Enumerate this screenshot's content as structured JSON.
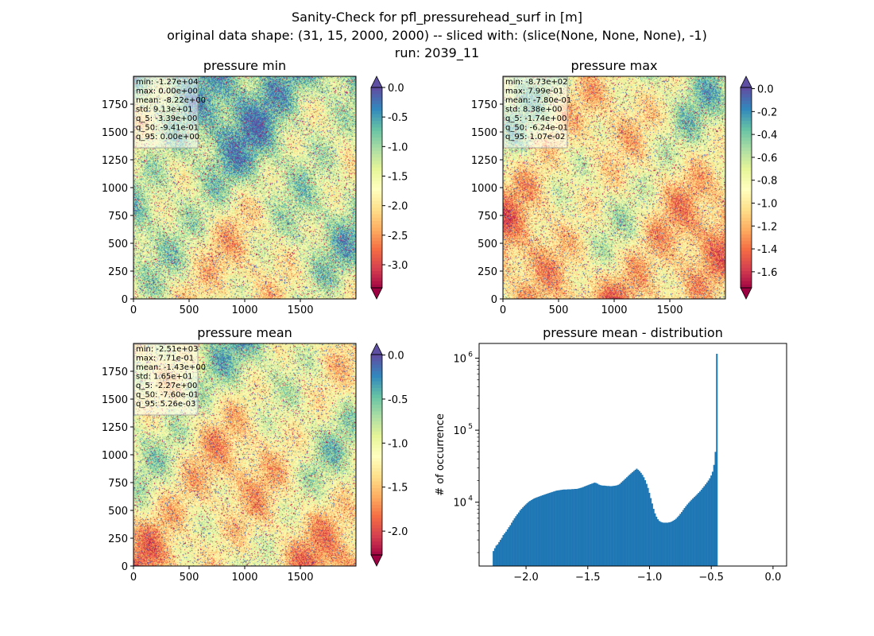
{
  "figure": {
    "suptitle_lines": [
      "Sanity-Check for pfl_pressurehead_surf in [m]",
      "original data shape: (31, 15, 2000, 2000) -- sliced with: (slice(None, None, None), -1)",
      "run: 2039_11"
    ]
  },
  "colors": {
    "histogram_bar": "#1f77b4",
    "stats_box_bg": "#ffffff",
    "spectral_scale": [
      "#9e0142",
      "#d53e4f",
      "#f46d43",
      "#fdae61",
      "#fee08b",
      "#ffffbf",
      "#e6f598",
      "#abdda4",
      "#66c2a5",
      "#3288bd",
      "#5e4fa2"
    ]
  },
  "chart_data": [
    {
      "type": "heatmap",
      "title": "pressure min",
      "cmap": "Spectral",
      "xlim": [
        0,
        2000
      ],
      "ylim": [
        0,
        2000
      ],
      "xticks": [
        0,
        500,
        1000,
        1500
      ],
      "yticks": [
        0,
        250,
        500,
        750,
        1000,
        1250,
        1500,
        1750
      ],
      "colorbar": {
        "vmin": -3.39,
        "vmax": 0.0,
        "ticks": [
          "0.0",
          "-0.5",
          "-1.0",
          "-1.5",
          "-2.0",
          "-2.5",
          "-3.0"
        ],
        "extend": "both"
      },
      "stats": [
        "min: -1.27e+04",
        "max: 0.00e+00",
        "mean: -8.22e+00",
        "std: 9.13e+01",
        "q_5: -3.39e+00",
        "q_50: -9.41e-01",
        "q_95: 0.00e+00"
      ]
    },
    {
      "type": "heatmap",
      "title": "pressure max",
      "cmap": "Spectral",
      "xlim": [
        0,
        2000
      ],
      "ylim": [
        0,
        2000
      ],
      "xticks": [
        0,
        500,
        1000,
        1500
      ],
      "yticks": [
        0,
        250,
        500,
        750,
        1000,
        1250,
        1500,
        1750
      ],
      "colorbar": {
        "vmin": -1.74,
        "vmax": 0.0107,
        "ticks": [
          "0.0",
          "-0.2",
          "-0.4",
          "-0.6",
          "-0.8",
          "-1.0",
          "-1.2",
          "-1.4",
          "-1.6"
        ],
        "extend": "both"
      },
      "stats": [
        "min: -8.73e+02",
        "max: 7.99e-01",
        "mean: -7.80e-01",
        "std: 8.38e+00",
        "q_5: -1.74e+00",
        "q_50: -6.24e-01",
        "q_95: 1.07e-02"
      ]
    },
    {
      "type": "heatmap",
      "title": "pressure mean",
      "cmap": "Spectral",
      "xlim": [
        0,
        2000
      ],
      "ylim": [
        0,
        2000
      ],
      "xticks": [
        0,
        500,
        1000,
        1500
      ],
      "yticks": [
        0,
        250,
        500,
        750,
        1000,
        1250,
        1500,
        1750
      ],
      "colorbar": {
        "vmin": -2.27,
        "vmax": 0.00526,
        "ticks": [
          "0.0",
          "-0.5",
          "-1.0",
          "-1.5",
          "-2.0"
        ],
        "extend": "both"
      },
      "stats": [
        "min: -2.51e+03",
        "max: 7.71e-01",
        "mean: -1.43e+00",
        "std: 1.65e+01",
        "q_5: -2.27e+00",
        "q_50: -7.60e-01",
        "q_95: 5.26e-03"
      ]
    },
    {
      "type": "bar",
      "title": "pressure mean - distribution",
      "xlabel": "",
      "ylabel": "# of occurrence",
      "xlim": [
        -2.38,
        0.11
      ],
      "ylim": [
        1300,
        1600000
      ],
      "log_y": true,
      "xticks": [
        "−2.0",
        "−1.5",
        "−1.0",
        "−0.5",
        "0.0"
      ],
      "yticks": [
        {
          "base": "10",
          "exp": "4"
        },
        {
          "base": "10",
          "exp": "5"
        },
        {
          "base": "10",
          "exp": "6"
        }
      ],
      "bins": {
        "start": -2.27,
        "end": 0.00526,
        "width": 0.0113761
      },
      "values": [
        2100,
        2300,
        2500,
        2600,
        2800,
        3000,
        3200,
        3500,
        3700,
        3900,
        4200,
        4500,
        4800,
        5200,
        5600,
        6000,
        6400,
        6800,
        7200,
        7700,
        8100,
        8500,
        8900,
        9300,
        9700,
        10100,
        10400,
        10700,
        11000,
        11300,
        11500,
        11700,
        11900,
        12100,
        12300,
        12500,
        12700,
        12900,
        13100,
        13300,
        13500,
        13700,
        13900,
        14100,
        14300,
        14500,
        14600,
        14700,
        14800,
        14900,
        15000,
        15000,
        15000,
        15100,
        15100,
        15100,
        15200,
        15200,
        15300,
        15300,
        15400,
        15600,
        15800,
        16000,
        16300,
        16600,
        16900,
        17200,
        17500,
        17800,
        18100,
        18400,
        18700,
        18500,
        18100,
        17600,
        17300,
        17100,
        17000,
        17000,
        16900,
        16800,
        16800,
        16700,
        16700,
        16800,
        16900,
        17000,
        17200,
        17500,
        18000,
        18800,
        19600,
        20400,
        21300,
        22200,
        23200,
        24200,
        25200,
        26200,
        27200,
        28200,
        29200,
        28200,
        27000,
        25600,
        24000,
        22200,
        20200,
        18000,
        15800,
        13500,
        11400,
        9600,
        8100,
        7000,
        6300,
        5800,
        5500,
        5350,
        5250,
        5200,
        5200,
        5200,
        5200,
        5250,
        5300,
        5400,
        5550,
        5700,
        5900,
        6200,
        6500,
        6900,
        7300,
        7800,
        8300,
        8800,
        9300,
        9800,
        10300,
        10800,
        11300,
        11800,
        12300,
        12900,
        13500,
        14100,
        14900,
        15800,
        16700,
        17700,
        18800,
        20000,
        21500,
        23500,
        26500,
        33000,
        50000,
        1150000
      ]
    }
  ]
}
